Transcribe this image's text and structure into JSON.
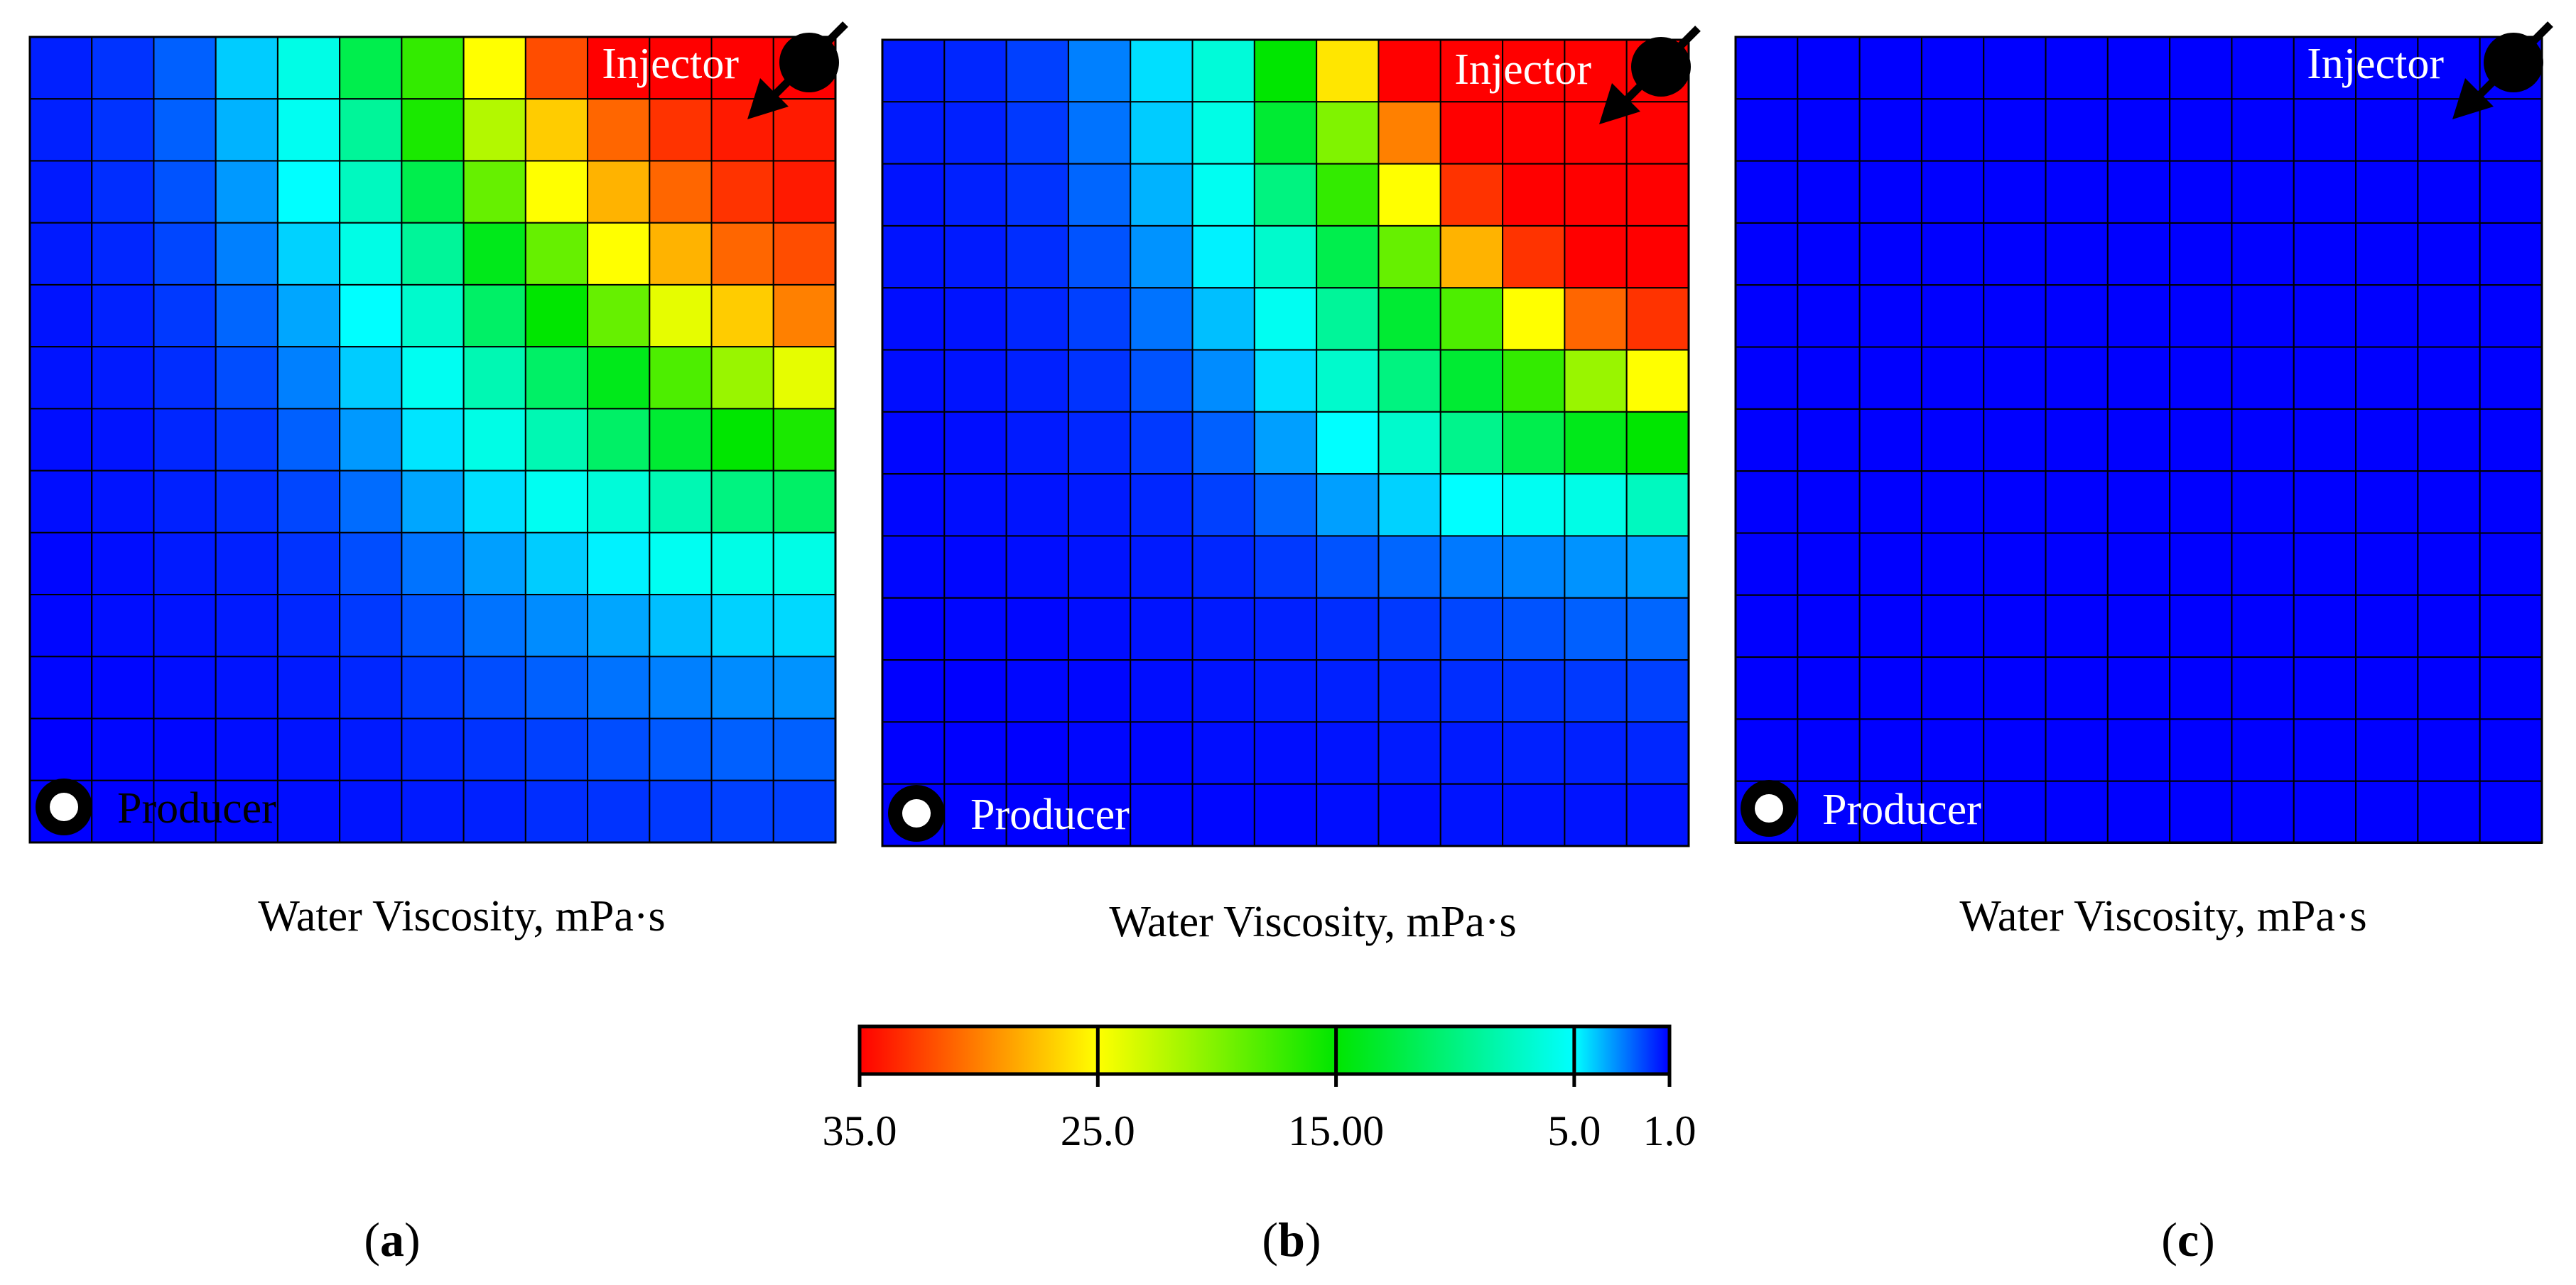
{
  "figure": {
    "panel_caption": "Water Viscosity, mPa·s",
    "colors": {
      "grid_line": "#000000",
      "well_fill": "#000000",
      "producer_dot": "#ffffff",
      "injector_label_color": "#ffffff",
      "producer_label_color_a": "#000000",
      "producer_label_color_b": "#ffffff",
      "producer_label_color_c": "#ffffff"
    },
    "icons": {
      "injector": "injector-well-icon",
      "producer": "producer-well-icon",
      "flow_arrow": "injection-arrow-icon"
    }
  },
  "chart_data": [
    {
      "type": "heatmap",
      "panel": "a",
      "panel_label": "a",
      "xlabel": "Water Viscosity, mPa·s",
      "injector_label": "Injector",
      "producer_label": "Producer",
      "grid_size": [
        13,
        13
      ],
      "values": [
        [
          1.5,
          1.8,
          2.5,
          4.2,
          6.0,
          12.0,
          17.0,
          25.0,
          32.0,
          35.0,
          35.0,
          35.0,
          35.0
        ],
        [
          1.5,
          1.8,
          2.5,
          3.8,
          5.5,
          9.0,
          16.0,
          22.0,
          27.0,
          31.0,
          33.0,
          34.0,
          34.0
        ],
        [
          1.4,
          1.7,
          2.3,
          3.4,
          5.0,
          7.5,
          12.0,
          19.0,
          25.0,
          28.0,
          31.0,
          33.0,
          34.0
        ],
        [
          1.4,
          1.6,
          2.1,
          3.0,
          4.3,
          6.0,
          9.0,
          14.0,
          19.0,
          25.0,
          28.0,
          31.0,
          32.0
        ],
        [
          1.3,
          1.5,
          1.9,
          2.6,
          3.6,
          5.0,
          7.0,
          11.0,
          15.0,
          19.0,
          24.0,
          27.0,
          30.0
        ],
        [
          1.3,
          1.4,
          1.7,
          2.2,
          3.0,
          4.2,
          5.5,
          8.0,
          11.0,
          14.0,
          18.0,
          21.0,
          24.0
        ],
        [
          1.2,
          1.3,
          1.6,
          1.9,
          2.5,
          3.4,
          4.6,
          6.0,
          8.0,
          11.0,
          13.0,
          15.0,
          16.0
        ],
        [
          1.2,
          1.3,
          1.5,
          1.7,
          2.1,
          2.7,
          3.6,
          4.5,
          5.5,
          6.5,
          8.0,
          10.0,
          11.0
        ],
        [
          1.1,
          1.2,
          1.4,
          1.5,
          1.8,
          2.2,
          2.8,
          3.5,
          4.2,
          4.8,
          5.5,
          6.0,
          6.0
        ],
        [
          1.1,
          1.2,
          1.3,
          1.4,
          1.6,
          1.9,
          2.3,
          2.8,
          3.2,
          3.6,
          4.0,
          4.3,
          4.4
        ],
        [
          1.1,
          1.1,
          1.2,
          1.3,
          1.4,
          1.6,
          1.9,
          2.2,
          2.5,
          2.8,
          3.0,
          3.2,
          3.3
        ],
        [
          1.0,
          1.1,
          1.1,
          1.2,
          1.3,
          1.4,
          1.6,
          1.8,
          2.0,
          2.2,
          2.4,
          2.5,
          2.5
        ],
        [
          1.0,
          1.0,
          1.1,
          1.1,
          1.2,
          1.3,
          1.4,
          1.5,
          1.7,
          1.8,
          1.9,
          2.0,
          2.0
        ]
      ]
    },
    {
      "type": "heatmap",
      "panel": "b",
      "panel_label": "b",
      "xlabel": "Water Viscosity, mPa·s",
      "injector_label": "Injector",
      "producer_label": "Producer",
      "grid_size": [
        13,
        13
      ],
      "values": [
        [
          1.4,
          1.6,
          2.0,
          3.0,
          4.5,
          6.5,
          15.0,
          26.0,
          35.0,
          35.0,
          35.0,
          35.0,
          35.0
        ],
        [
          1.4,
          1.5,
          1.9,
          2.8,
          4.2,
          6.0,
          13.0,
          20.0,
          30.0,
          35.0,
          35.0,
          35.0,
          35.0
        ],
        [
          1.3,
          1.5,
          1.8,
          2.6,
          3.8,
          5.5,
          10.0,
          17.0,
          25.0,
          33.0,
          35.0,
          35.0,
          35.0
        ],
        [
          1.3,
          1.4,
          1.7,
          2.3,
          3.3,
          4.8,
          7.0,
          12.0,
          19.0,
          28.0,
          33.0,
          35.0,
          35.0
        ],
        [
          1.2,
          1.3,
          1.6,
          2.0,
          2.8,
          4.0,
          5.5,
          9.0,
          13.0,
          18.0,
          25.0,
          31.0,
          33.0
        ],
        [
          1.2,
          1.3,
          1.5,
          1.8,
          2.3,
          3.2,
          4.5,
          7.0,
          10.0,
          13.0,
          17.0,
          21.0,
          25.0
        ],
        [
          1.1,
          1.2,
          1.4,
          1.6,
          1.9,
          2.5,
          3.5,
          5.0,
          7.0,
          9.5,
          12.0,
          14.0,
          15.0
        ],
        [
          1.1,
          1.2,
          1.3,
          1.4,
          1.6,
          2.0,
          2.6,
          3.5,
          4.3,
          5.0,
          5.5,
          6.0,
          7.5
        ],
        [
          1.1,
          1.1,
          1.2,
          1.3,
          1.4,
          1.6,
          1.9,
          2.3,
          2.6,
          2.9,
          3.1,
          3.3,
          3.5
        ],
        [
          1.0,
          1.1,
          1.1,
          1.2,
          1.3,
          1.4,
          1.5,
          1.7,
          1.9,
          2.1,
          2.3,
          2.5,
          2.6
        ],
        [
          1.0,
          1.0,
          1.1,
          1.1,
          1.2,
          1.3,
          1.4,
          1.5,
          1.6,
          1.7,
          1.8,
          1.9,
          2.0
        ],
        [
          1.0,
          1.0,
          1.0,
          1.1,
          1.1,
          1.2,
          1.2,
          1.3,
          1.4,
          1.4,
          1.5,
          1.5,
          1.6
        ],
        [
          1.0,
          1.0,
          1.0,
          1.0,
          1.1,
          1.1,
          1.1,
          1.2,
          1.2,
          1.3,
          1.3,
          1.3,
          1.3
        ]
      ]
    },
    {
      "type": "heatmap",
      "panel": "c",
      "panel_label": "c",
      "xlabel": "Water Viscosity, mPa·s",
      "injector_label": "Injector",
      "producer_label": "Producer",
      "grid_size": [
        13,
        13
      ],
      "uniform_value": 1.0
    }
  ],
  "colorbar": {
    "direction": "high-to-low, left-to-right",
    "range": [
      1.0,
      35.0
    ],
    "tick_labels": [
      "35.0",
      "25.0",
      "15.00",
      "5.0",
      "1.0"
    ],
    "tick_values": [
      35.0,
      25.0,
      15.0,
      5.0,
      1.0
    ],
    "color_stops": [
      {
        "value": 35.0,
        "color": "#ff0000"
      },
      {
        "value": 25.0,
        "color": "#ffff00"
      },
      {
        "value": 15.0,
        "color": "#00e600"
      },
      {
        "value": 5.0,
        "color": "#00ffff"
      },
      {
        "value": 1.0,
        "color": "#0000ff"
      }
    ]
  }
}
